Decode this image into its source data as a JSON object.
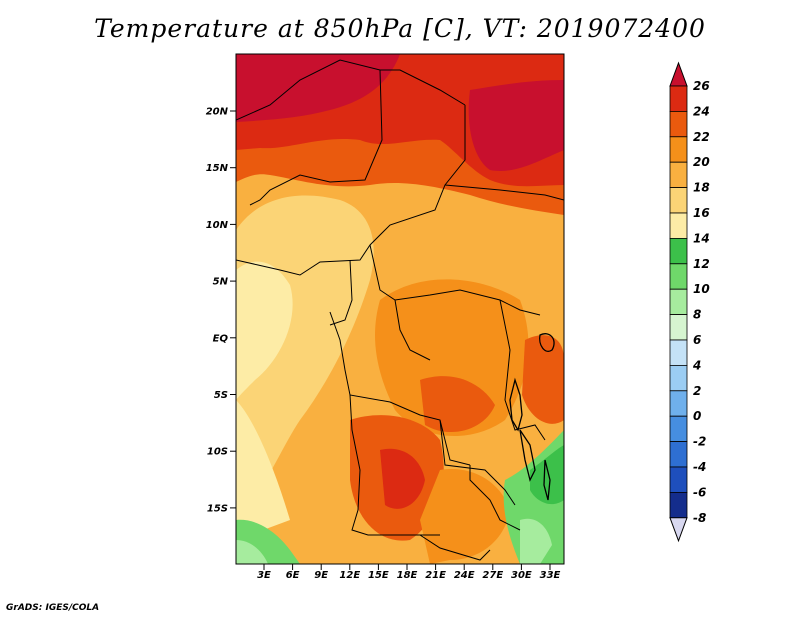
{
  "title": "Temperature at 850hPa [C], VT: 2019072400",
  "credit": "GrADS: IGES/COLA",
  "map": {
    "lat_ticks": [
      "20N",
      "15N",
      "10N",
      "5N",
      "EQ",
      "5S",
      "10S",
      "15S"
    ],
    "lon_ticks": [
      "3E",
      "6E",
      "9E",
      "12E",
      "15E",
      "18E",
      "21E",
      "24E",
      "27E",
      "30E",
      "33E"
    ]
  },
  "colorbar": {
    "labels": [
      "26",
      "24",
      "22",
      "20",
      "18",
      "16",
      "14",
      "12",
      "10",
      "8",
      "6",
      "4",
      "2",
      "0",
      "-2",
      "-4",
      "-6",
      "-8"
    ],
    "colors": {
      "t26": "#c8102e",
      "t24": "#dc2a12",
      "t22": "#ea5a0e",
      "t20": "#f5901a",
      "t18": "#f9b040",
      "t16": "#fbd476",
      "t14": "#fdeca6",
      "t12": "#3cc04a",
      "t10": "#6fd86a",
      "t8": "#a6ec9e",
      "t6": "#d6f5d0",
      "t4": "#c4e2f7",
      "t2": "#9bcdf3",
      "t0": "#6fb0ec",
      "tm2": "#468ee0",
      "tm4": "#2e6fd2",
      "tm6": "#1e4fbd",
      "tm8": "#142d8c",
      "tm10": "#0a1a5a",
      "tlow": "#d8d8f0"
    }
  }
}
